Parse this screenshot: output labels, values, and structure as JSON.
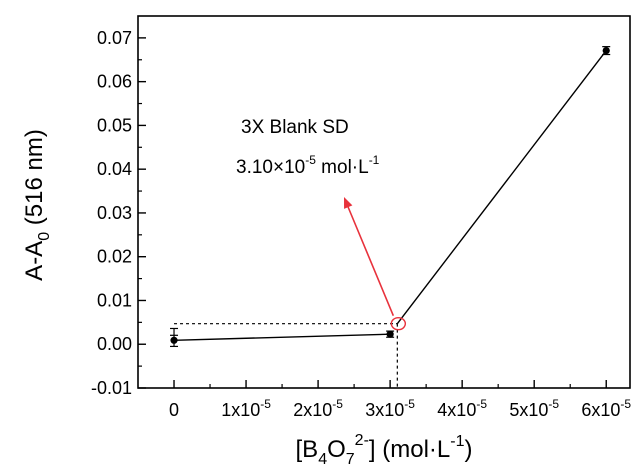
{
  "chart_data": {
    "type": "scatter",
    "xlabel_parts": {
      "open": "[B",
      "sub1": "4",
      "mid": "O",
      "sub2": "7",
      "sup": "2-",
      "close": "] (mol·L",
      "sup2": "-1",
      "end": ")"
    },
    "ylabel_parts": {
      "main": "A-A",
      "sub": "0",
      "rest": " (516 nm)"
    },
    "xlim": [
      -5e-06,
      6.33e-05
    ],
    "ylim": [
      -0.01,
      0.075
    ],
    "x_ticks": [
      {
        "value": 0,
        "label": "0"
      },
      {
        "value": 1e-05,
        "label": "1x10",
        "exp": "-5"
      },
      {
        "value": 2e-05,
        "label": "2x10",
        "exp": "-5"
      },
      {
        "value": 3e-05,
        "label": "3x10",
        "exp": "-5"
      },
      {
        "value": 4e-05,
        "label": "4x10",
        "exp": "-5"
      },
      {
        "value": 5e-05,
        "label": "5x10",
        "exp": "-5"
      },
      {
        "value": 6e-05,
        "label": "6x10",
        "exp": "-5"
      }
    ],
    "y_ticks": [
      {
        "value": -0.01,
        "label": "-0.01"
      },
      {
        "value": 0.0,
        "label": "0.00"
      },
      {
        "value": 0.01,
        "label": "0.01"
      },
      {
        "value": 0.02,
        "label": "0.02"
      },
      {
        "value": 0.03,
        "label": "0.03"
      },
      {
        "value": 0.04,
        "label": "0.04"
      },
      {
        "value": 0.05,
        "label": "0.05"
      },
      {
        "value": 0.06,
        "label": "0.06"
      },
      {
        "value": 0.07,
        "label": "0.07"
      }
    ],
    "points": [
      {
        "x": 0,
        "y": 0.0009,
        "err": 0.0008,
        "bar_low": -0.0005,
        "bar_high": 0.0036
      },
      {
        "x": 3e-05,
        "y": 0.0023,
        "err": 0.0007
      },
      {
        "x": 6e-05,
        "y": 0.0671,
        "err": 0.0009
      }
    ],
    "detection_limit": {
      "x": 3.1e-05,
      "y": 0.0047
    },
    "annotation": {
      "line1": "3X Blank SD",
      "line2_prefix": "3.10×10",
      "line2_exp": "-5",
      "line2_unit": " mol·L",
      "line2_unit_exp": "-1",
      "arrow_color": "#e8323c"
    },
    "grid": false
  }
}
